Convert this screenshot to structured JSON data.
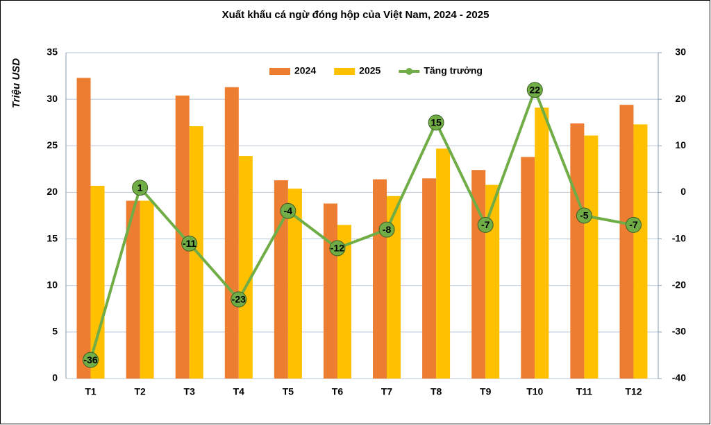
{
  "chart_data": {
    "type": "bar",
    "title": "Xuất khẩu cá ngừ đóng hộp của Việt Nam, 2024  - 2025",
    "y_label": "Triệu USD",
    "categories": [
      "T1",
      "T2",
      "T3",
      "T4",
      "T5",
      "T6",
      "T7",
      "T8",
      "T9",
      "T10",
      "T11",
      "T12"
    ],
    "series": [
      {
        "name": "2024",
        "type": "bar",
        "color": "#ed7d31",
        "values": [
          32.3,
          19.1,
          30.4,
          31.3,
          21.3,
          18.8,
          21.4,
          21.5,
          22.4,
          23.8,
          27.4,
          29.4
        ]
      },
      {
        "name": "2025",
        "type": "bar",
        "color": "#ffc000",
        "values": [
          20.7,
          19.1,
          27.1,
          23.9,
          20.4,
          16.5,
          19.6,
          24.7,
          20.8,
          29.1,
          26.1,
          27.3
        ]
      },
      {
        "name": "Tăng trưởng",
        "type": "line",
        "axis": "y2",
        "color": "#70ad47",
        "values": [
          -36,
          1,
          -11,
          -23,
          -4,
          -12,
          -8,
          15,
          -7,
          22,
          -5,
          -7
        ]
      }
    ],
    "ylim": [
      0,
      35
    ],
    "yticks": [
      0,
      5,
      10,
      15,
      20,
      25,
      30,
      35
    ],
    "y2lim": [
      -40,
      30
    ],
    "y2ticks": [
      -40,
      -30,
      -20,
      -10,
      0,
      10,
      20,
      30
    ],
    "grid": true,
    "legend": "top"
  }
}
